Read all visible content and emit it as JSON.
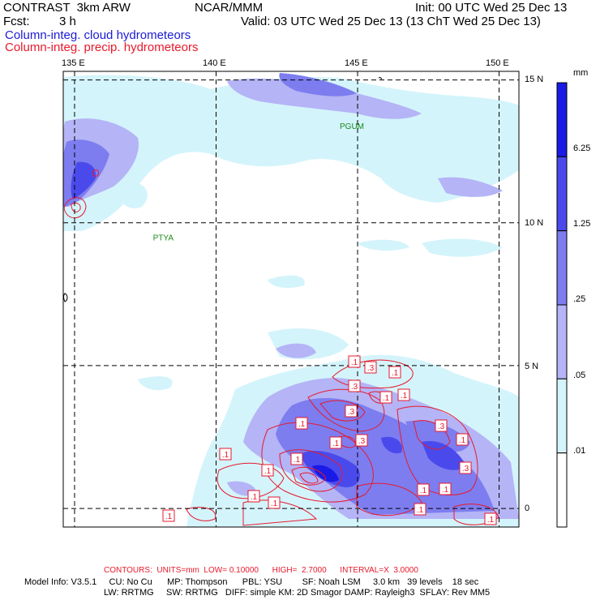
{
  "header": {
    "model": "CONTRAST  3km ARW",
    "center": "NCAR/MMM",
    "init": "Init: 00 UTC Wed 25 Dec 13",
    "fcst_label": "Fcst:",
    "fcst_value": "3 h",
    "valid": "Valid: 03 UTC Wed 25 Dec 13 (13 ChT Wed 25 Dec 13)"
  },
  "fields": {
    "cloud": "Column-integ. cloud hydrometeors",
    "precip": "Column-integ. precip. hydrometeors",
    "cloud_color": "#1b1bd6",
    "precip_color": "#e8192c"
  },
  "axes": {
    "lon_labels": [
      "135 E",
      "140 E",
      "145 E",
      "150 E"
    ],
    "lat_labels": [
      "15 N",
      "10 N",
      "5 N",
      "0"
    ],
    "lon_values": [
      135,
      140,
      145,
      150
    ],
    "lat_values": [
      15,
      10,
      5,
      0
    ],
    "lon_range": [
      134.6,
      150.7
    ],
    "lat_range": [
      -0.65,
      15.3
    ]
  },
  "stations": [
    {
      "name": "PGUM",
      "lon": 145.0,
      "lat": 13.4
    },
    {
      "name": "PTYA",
      "lon": 138.4,
      "lat": 9.5
    }
  ],
  "legend": {
    "unit": "mm",
    "labels": [
      "6.25",
      "1.25",
      ".25",
      ".05",
      ".01"
    ],
    "colors": [
      "#1a1ae6",
      "#4a4aec",
      "#7d7df0",
      "#b4b4f6",
      "#d4f4fb",
      "#ffffff"
    ]
  },
  "contour_labels": [
    ".1",
    ".3",
    ".1",
    ".3",
    ".1",
    ".1",
    ".3",
    ".1",
    ".3",
    ".1",
    ".1",
    ".3",
    ".1",
    ".3",
    ".1",
    ".1",
    ".1",
    ".1",
    ".1",
    ".1",
    ".1",
    ".1",
    ".1"
  ],
  "footer": {
    "contours": "CONTOURS:  UNITS=mm  LOW= 0.10000      HIGH=  2.7000      INTERVAL=X  3.0000",
    "model_info": "Model Info: V3.5.1     CU: No Cu      MP: Thompson      PBL: YSU        SF: Noah LSM     3.0 km   39 levels    18 sec",
    "model_info2": "LW: RRTMG     SW: RRTMG   DIFF: simple KM: 2D Smagor DAMP: Rayleigh3  SFLAY: Rev MM5"
  }
}
